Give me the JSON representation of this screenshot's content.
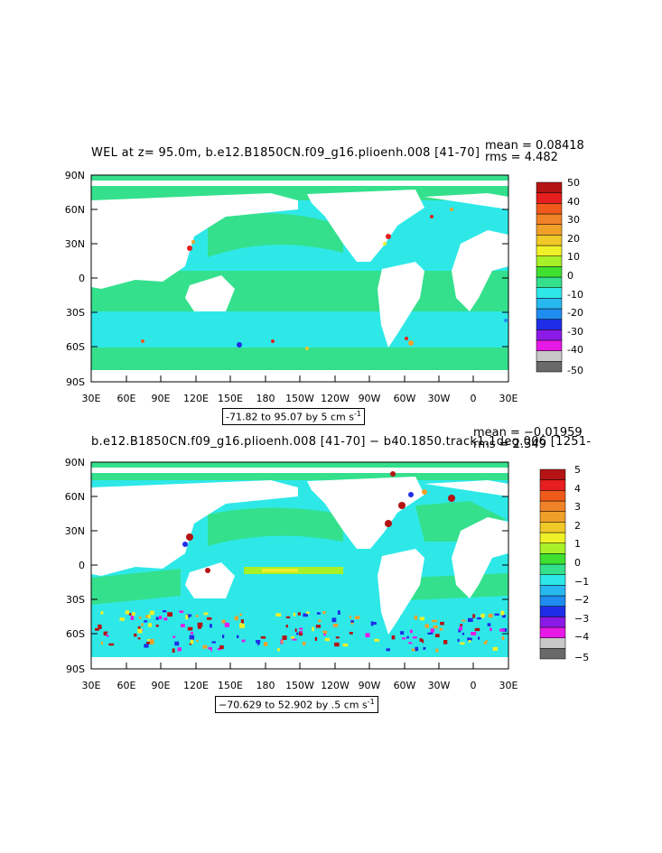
{
  "panels": [
    {
      "title": "WEL at z=  95.0m, b.e12.B1850CN.f09_g16.plioenh.008  [41-70]",
      "mean_label": "mean = 0.08418",
      "rms_label": "rms = 4.482",
      "range_label": "-71.82 to 95.07 by 5 cm s",
      "range_sup": "-1",
      "colorbar_labels": [
        "50",
        "40",
        "30",
        "20",
        "10",
        "0",
        "-10",
        "-20",
        "-30",
        "-40",
        "-50"
      ]
    },
    {
      "title": "b.e12.B1850CN.f09_g16.plioenh.008  [41-70]  −  b40.1850.track1.1deg.006  [1251-",
      "mean_label": "mean = −0.01959",
      "rms_label": "rms = 2.349",
      "range_label": "−70.629 to 52.902 by .5 cm s",
      "range_sup": "-1",
      "colorbar_labels": [
        "5",
        "4",
        "3",
        "2",
        "1",
        "0",
        "−1",
        "−2",
        "−3",
        "−4",
        "−5"
      ]
    }
  ],
  "axes": {
    "x_ticks": [
      "30E",
      "60E",
      "90E",
      "120E",
      "150E",
      "180",
      "150W",
      "120W",
      "90W",
      "60W",
      "30W",
      "0",
      "30E"
    ],
    "y_ticks": [
      "90N",
      "60N",
      "30N",
      "0",
      "30S",
      "60S",
      "90S"
    ]
  },
  "colors": {
    "land": "#ffffff",
    "ocean_base": "#2ee8e8",
    "positive_band": "#2ee06a",
    "colorbar": [
      "#696969",
      "#c8c8c8",
      "#e619e6",
      "#8c1ae6",
      "#1f2ee6",
      "#1f8cf0",
      "#28b8f0",
      "#2ee8e8",
      "#34e08c",
      "#40e030",
      "#a8f028",
      "#f0f028",
      "#f0c828",
      "#f0a028",
      "#f08228",
      "#f05a1a",
      "#e61e1e",
      "#b41414"
    ]
  }
}
